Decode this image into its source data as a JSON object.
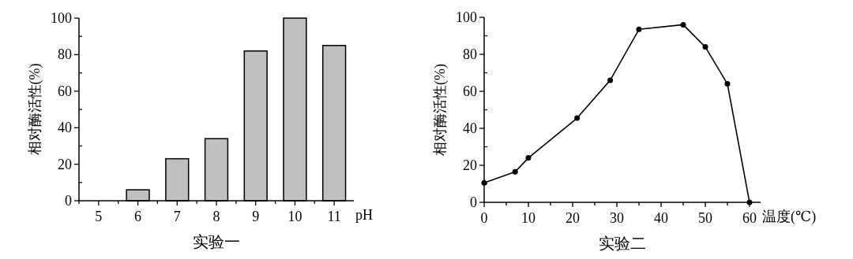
{
  "chart_data": [
    {
      "type": "bar",
      "title": "实验一",
      "xlabel": "pH",
      "ylabel": "相对酶活性(%)",
      "categories": [
        "5",
        "6",
        "7",
        "8",
        "9",
        "10",
        "11"
      ],
      "series": [
        {
          "color": "#c0c0c0",
          "values": [
            0,
            6,
            23,
            34,
            82,
            100,
            85
          ]
        }
      ],
      "ylim": [
        0,
        100
      ],
      "yticks": [
        0,
        {
          "value": 10,
          "label": null
        },
        20,
        {
          "value": 30,
          "label": null
        },
        40,
        {
          "value": 50,
          "label": null
        },
        60,
        {
          "value": 70,
          "label": null
        },
        80,
        {
          "value": 90,
          "label": null
        },
        100
      ]
    },
    {
      "type": "line",
      "title": "实验二",
      "xlabel": "温度(℃)",
      "ylabel": "相对酶活性(%)",
      "x": [
        0,
        7,
        10,
        21,
        28.5,
        35,
        45,
        50,
        55,
        60
      ],
      "series": [
        {
          "color": "#000000",
          "values": [
            10.5,
            16.5,
            24,
            45.5,
            66,
            93.5,
            96,
            84,
            64,
            0
          ]
        }
      ],
      "xlim": [
        0,
        62.5
      ],
      "xticks": [
        0,
        {
          "value": 5,
          "label": null
        },
        10,
        {
          "value": 15,
          "label": null
        },
        20,
        {
          "value": 25,
          "label": null
        },
        30,
        {
          "value": 35,
          "label": null
        },
        40,
        {
          "value": 45,
          "label": null
        },
        50,
        {
          "value": 55,
          "label": null
        },
        60
      ],
      "ylim": [
        0,
        100
      ],
      "yticks": [
        0,
        {
          "value": 10,
          "label": null
        },
        20,
        {
          "value": 30,
          "label": null
        },
        40,
        {
          "value": 50,
          "label": null
        },
        60,
        {
          "value": 70,
          "label": null
        },
        80,
        {
          "value": 90,
          "label": null
        },
        100
      ],
      "marker": "circle",
      "line_style": "solid"
    }
  ]
}
